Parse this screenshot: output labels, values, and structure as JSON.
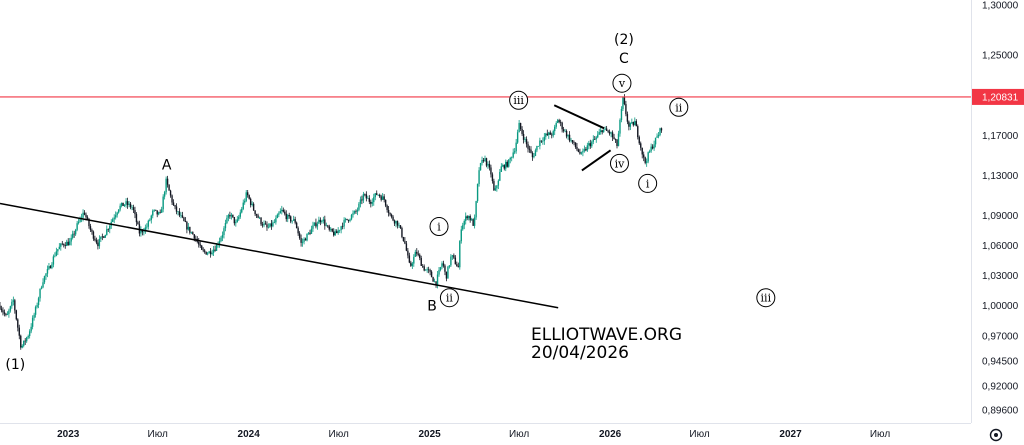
{
  "chart_data": {
    "type": "candlestick",
    "y_axis": {
      "position": "right",
      "ticks": [
        "1,30000",
        "1,25000",
        "1,20831",
        "1,17000",
        "1,13000",
        "1,09000",
        "1,06000",
        "1,03000",
        "1,00000",
        "0,97000",
        "0,94500",
        "0,92000",
        "0,89600"
      ],
      "ylim": [
        0.883,
        1.305
      ]
    },
    "x_axis": {
      "ticks": [
        {
          "label": "2023",
          "year": true
        },
        {
          "label": "Июл",
          "year": false
        },
        {
          "label": "2024",
          "year": true
        },
        {
          "label": "Июл",
          "year": false
        },
        {
          "label": "2025",
          "year": true
        },
        {
          "label": "Июл",
          "year": false
        },
        {
          "label": "2026",
          "year": true
        },
        {
          "label": "Июл",
          "year": false
        },
        {
          "label": "2027",
          "year": true
        },
        {
          "label": "Июл",
          "year": false
        }
      ],
      "xlim": [
        "2022-08-16",
        "2028-01-01"
      ]
    },
    "price_line": {
      "value": 1.20831,
      "label": "1,20831",
      "color": "#f23645"
    },
    "colors": {
      "up": "#089981",
      "down": "#131722",
      "trendline": "#000000",
      "background": "#ffffff",
      "axis_text": "#131722"
    },
    "price_path": [
      [
        "2022-08-16",
        1.0
      ],
      [
        "2022-08-29",
        0.988
      ],
      [
        "2022-09-12",
        1.005
      ],
      [
        "2022-09-28",
        0.958
      ],
      [
        "2022-10-13",
        0.972
      ],
      [
        "2022-10-27",
        0.996
      ],
      [
        "2022-11-10",
        1.025
      ],
      [
        "2022-11-24",
        1.038
      ],
      [
        "2022-12-08",
        1.055
      ],
      [
        "2022-12-22",
        1.062
      ],
      [
        "2023-01-05",
        1.063
      ],
      [
        "2023-01-19",
        1.08
      ],
      [
        "2023-02-02",
        1.094
      ],
      [
        "2023-02-16",
        1.074
      ],
      [
        "2023-03-02",
        1.062
      ],
      [
        "2023-03-16",
        1.072
      ],
      [
        "2023-03-30",
        1.085
      ],
      [
        "2023-04-13",
        1.098
      ],
      [
        "2023-04-27",
        1.102
      ],
      [
        "2023-05-11",
        1.098
      ],
      [
        "2023-05-25",
        1.073
      ],
      [
        "2023-06-08",
        1.078
      ],
      [
        "2023-06-22",
        1.094
      ],
      [
        "2023-07-06",
        1.09
      ],
      [
        "2023-07-18",
        1.124
      ],
      [
        "2023-08-03",
        1.098
      ],
      [
        "2023-08-17",
        1.088
      ],
      [
        "2023-08-31",
        1.077
      ],
      [
        "2023-09-14",
        1.069
      ],
      [
        "2023-09-28",
        1.054
      ],
      [
        "2023-10-12",
        1.053
      ],
      [
        "2023-10-26",
        1.058
      ],
      [
        "2023-11-09",
        1.072
      ],
      [
        "2023-11-23",
        1.092
      ],
      [
        "2023-12-07",
        1.081
      ],
      [
        "2023-12-28",
        1.112
      ],
      [
        "2024-01-11",
        1.096
      ],
      [
        "2024-01-25",
        1.084
      ],
      [
        "2024-02-08",
        1.077
      ],
      [
        "2024-02-22",
        1.083
      ],
      [
        "2024-03-07",
        1.095
      ],
      [
        "2024-03-21",
        1.087
      ],
      [
        "2024-04-04",
        1.084
      ],
      [
        "2024-04-16",
        1.062
      ],
      [
        "2024-04-30",
        1.071
      ],
      [
        "2024-05-14",
        1.081
      ],
      [
        "2024-05-28",
        1.087
      ],
      [
        "2024-06-11",
        1.075
      ],
      [
        "2024-06-25",
        1.071
      ],
      [
        "2024-07-09",
        1.082
      ],
      [
        "2024-07-23",
        1.088
      ],
      [
        "2024-08-06",
        1.094
      ],
      [
        "2024-08-20",
        1.11
      ],
      [
        "2024-09-03",
        1.104
      ],
      [
        "2024-09-17",
        1.112
      ],
      [
        "2024-10-01",
        1.106
      ],
      [
        "2024-10-15",
        1.088
      ],
      [
        "2024-10-29",
        1.082
      ],
      [
        "2024-11-12",
        1.062
      ],
      [
        "2024-11-22",
        1.038
      ],
      [
        "2024-12-05",
        1.054
      ],
      [
        "2024-12-19",
        1.038
      ],
      [
        "2025-01-02",
        1.032
      ],
      [
        "2025-01-13",
        1.022
      ],
      [
        "2025-01-27",
        1.044
      ],
      [
        "2025-02-03",
        1.028
      ],
      [
        "2025-02-14",
        1.05
      ],
      [
        "2025-02-28",
        1.038
      ],
      [
        "2025-03-05",
        1.078
      ],
      [
        "2025-03-19",
        1.091
      ],
      [
        "2025-04-01",
        1.08
      ],
      [
        "2025-04-11",
        1.136
      ],
      [
        "2025-04-21",
        1.148
      ],
      [
        "2025-05-05",
        1.132
      ],
      [
        "2025-05-12",
        1.111
      ],
      [
        "2025-05-26",
        1.138
      ],
      [
        "2025-06-09",
        1.142
      ],
      [
        "2025-06-23",
        1.158
      ],
      [
        "2025-07-01",
        1.18
      ],
      [
        "2025-07-15",
        1.162
      ],
      [
        "2025-07-28",
        1.148
      ],
      [
        "2025-08-11",
        1.164
      ],
      [
        "2025-08-25",
        1.17
      ],
      [
        "2025-09-08",
        1.172
      ],
      [
        "2025-09-17",
        1.186
      ],
      [
        "2025-10-01",
        1.174
      ],
      [
        "2025-10-15",
        1.164
      ],
      [
        "2025-11-04",
        1.15
      ],
      [
        "2025-11-18",
        1.16
      ],
      [
        "2025-12-02",
        1.166
      ],
      [
        "2025-12-16",
        1.176
      ],
      [
        "2026-01-02",
        1.172
      ],
      [
        "2026-01-15",
        1.16
      ],
      [
        "2026-01-27",
        1.206
      ],
      [
        "2026-02-08",
        1.178
      ],
      [
        "2026-02-20",
        1.183
      ],
      [
        "2026-03-02",
        1.163
      ],
      [
        "2026-03-12",
        1.142
      ],
      [
        "2026-03-24",
        1.156
      ],
      [
        "2026-04-06",
        1.168
      ],
      [
        "2026-04-17",
        1.18
      ]
    ],
    "trendlines": [
      {
        "name": "lower-trendline",
        "points": [
          [
            "2022-08-16",
            1.102
          ],
          [
            "2025-09-18",
            0.998
          ]
        ]
      },
      {
        "name": "triangle-upper",
        "points": [
          [
            "2025-09-10",
            1.2
          ],
          [
            "2025-12-20",
            1.177
          ]
        ]
      },
      {
        "name": "triangle-lower",
        "points": [
          [
            "2025-11-05",
            1.135
          ],
          [
            "2026-01-02",
            1.155
          ]
        ]
      }
    ],
    "annotations": [
      {
        "text": "(1)",
        "style": "plain",
        "date": "2022-09-16",
        "price": 0.942
      },
      {
        "text": "A",
        "style": "plain",
        "date": "2023-07-19",
        "price": 1.141
      },
      {
        "text": "B",
        "style": "plain",
        "date": "2025-01-06",
        "price": 1.0
      },
      {
        "text": "(2)",
        "style": "plain",
        "date": "2026-01-29",
        "price": 1.266
      },
      {
        "text": "C",
        "style": "plain",
        "date": "2026-01-29",
        "price": 1.247
      },
      {
        "text": "i",
        "style": "circle",
        "date": "2025-01-20",
        "price": 1.079
      },
      {
        "text": "ii",
        "style": "circle",
        "date": "2025-02-10",
        "price": 1.008
      },
      {
        "text": "iii",
        "style": "circle",
        "date": "2025-06-30",
        "price": 1.205
      },
      {
        "text": "iv",
        "style": "circle",
        "date": "2026-01-20",
        "price": 1.142
      },
      {
        "text": "v",
        "style": "circle",
        "date": "2026-01-25",
        "price": 1.222
      },
      {
        "text": "i",
        "style": "circle",
        "date": "2026-03-18",
        "price": 1.122
      },
      {
        "text": "ii",
        "style": "circle",
        "date": "2026-05-20",
        "price": 1.198
      },
      {
        "text": "iii",
        "style": "circle",
        "date": "2026-11-12",
        "price": 1.008
      }
    ],
    "watermark": [
      "ELLIOTWAVE.ORG",
      "20/04/2026"
    ]
  },
  "ui": {
    "settings_icon": "gear-icon"
  }
}
